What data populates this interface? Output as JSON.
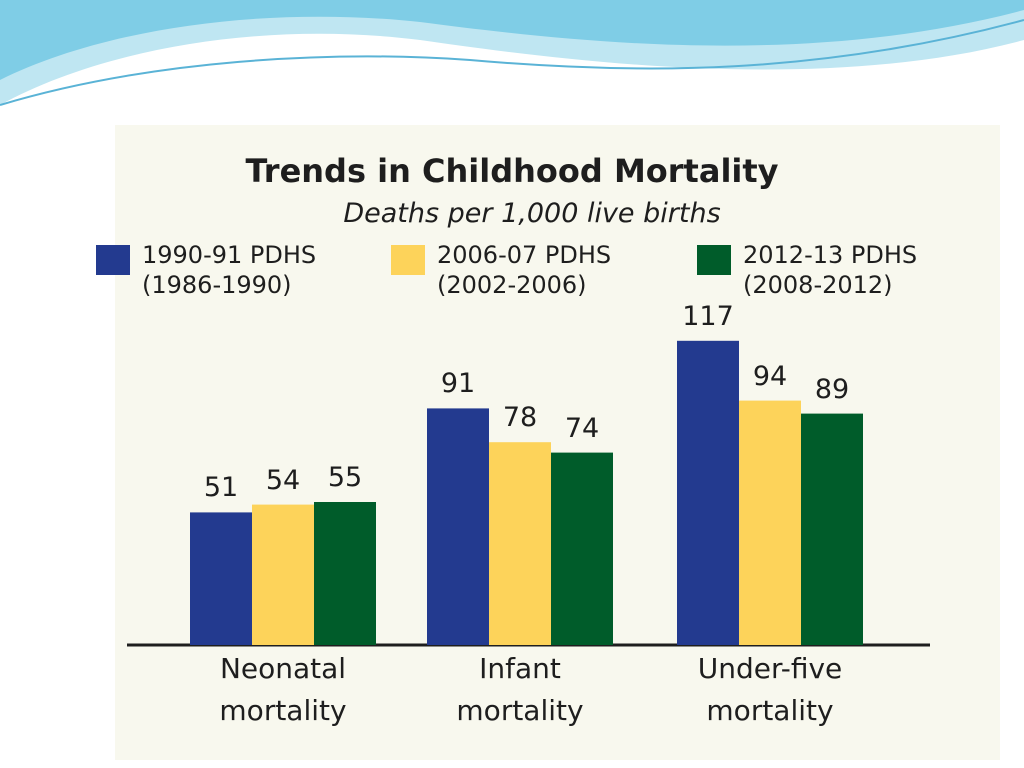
{
  "chart_data": {
    "type": "bar",
    "title": "Trends in Childhood Mortality",
    "subtitle": "Deaths per 1,000 live births",
    "categories": [
      "Neonatal mortality",
      "Infant mortality",
      "Under-five mortality"
    ],
    "series": [
      {
        "name": "1990-91 PDHS (1986-1990)",
        "color": "#233a8f",
        "values": [
          51,
          91,
          117
        ]
      },
      {
        "name": "2006-07 PDHS (2002-2006)",
        "color": "#fdd35a",
        "values": [
          54,
          78,
          94
        ]
      },
      {
        "name": "2012-13 PDHS (2008-2012)",
        "color": "#005c2a",
        "values": [
          55,
          74,
          89
        ]
      }
    ]
  }
}
